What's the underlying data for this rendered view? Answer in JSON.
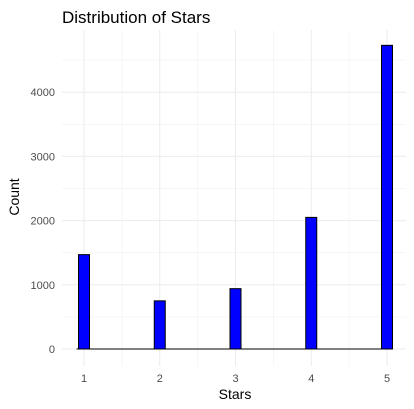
{
  "chart_data": {
    "type": "bar",
    "title": "Distribution of Stars",
    "xlabel": "Stars",
    "ylabel": "Count",
    "categories": [
      "1",
      "2",
      "3",
      "4",
      "5"
    ],
    "x": [
      1,
      2,
      3,
      4,
      5
    ],
    "values": [
      1470,
      750,
      940,
      2050,
      4730
    ],
    "x_ticks": [
      "1",
      "2",
      "3",
      "4",
      "5"
    ],
    "y_ticks": [
      "0",
      "1000",
      "2000",
      "3000",
      "4000"
    ],
    "ylim": [
      0,
      4730
    ],
    "xlim": [
      1,
      5
    ],
    "grid": true,
    "legend": "none",
    "colors": {
      "bar_fill": "#0000ff",
      "bar_stroke": "#000000",
      "grid": "#ebebeb",
      "background": "#ffffff"
    }
  }
}
